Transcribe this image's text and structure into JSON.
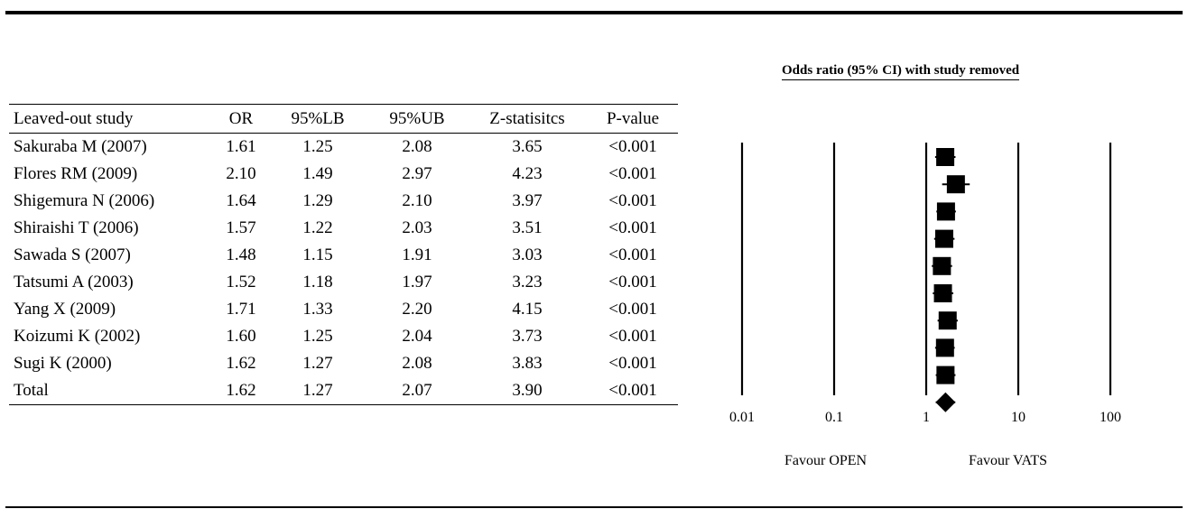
{
  "table": {
    "headers": [
      "Leaved-out study",
      "OR",
      "95%LB",
      "95%UB",
      "Z-statisitcs",
      "P-value"
    ],
    "rows": [
      {
        "study": "Sakuraba M (2007)",
        "or": "1.61",
        "lb": "1.25",
        "ub": "2.08",
        "z": "3.65",
        "p": "<0.001"
      },
      {
        "study": "Flores RM (2009)",
        "or": "2.10",
        "lb": "1.49",
        "ub": "2.97",
        "z": "4.23",
        "p": "<0.001"
      },
      {
        "study": "Shigemura N (2006)",
        "or": "1.64",
        "lb": "1.29",
        "ub": "2.10",
        "z": "3.97",
        "p": "<0.001"
      },
      {
        "study": "Shiraishi T (2006)",
        "or": "1.57",
        "lb": "1.22",
        "ub": "2.03",
        "z": "3.51",
        "p": "<0.001"
      },
      {
        "study": "Sawada S (2007)",
        "or": "1.48",
        "lb": "1.15",
        "ub": "1.91",
        "z": "3.03",
        "p": "<0.001"
      },
      {
        "study": "Tatsumi A (2003)",
        "or": "1.52",
        "lb": "1.18",
        "ub": "1.97",
        "z": "3.23",
        "p": "<0.001"
      },
      {
        "study": "Yang X (2009)",
        "or": "1.71",
        "lb": "1.33",
        "ub": "2.20",
        "z": "4.15",
        "p": "<0.001"
      },
      {
        "study": "Koizumi K (2002)",
        "or": "1.60",
        "lb": "1.25",
        "ub": "2.04",
        "z": "3.73",
        "p": "<0.001"
      },
      {
        "study": "Sugi K (2000)",
        "or": "1.62",
        "lb": "1.27",
        "ub": "2.08",
        "z": "3.83",
        "p": "<0.001"
      },
      {
        "study": "Total",
        "or": "1.62",
        "lb": "1.27",
        "ub": "2.07",
        "z": "3.90",
        "p": "<0.001"
      }
    ]
  },
  "chart_data": {
    "type": "forest",
    "title": "Odds ratio (95% CI) with study removed",
    "x_scale": "log",
    "xlim": [
      0.01,
      100
    ],
    "x_ticks": [
      0.01,
      0.1,
      1,
      10,
      100
    ],
    "x_tick_labels": [
      "0.01",
      "0.1",
      "1",
      "10",
      "100"
    ],
    "gridlines_at": [
      0.01,
      0.1,
      1,
      10,
      100
    ],
    "left_label": "Favour OPEN",
    "right_label": "Favour VATS",
    "points": [
      {
        "label": "Sakuraba M (2007)",
        "or": 1.61,
        "lb": 1.25,
        "ub": 2.08,
        "marker": "square"
      },
      {
        "label": "Flores RM (2009)",
        "or": 2.1,
        "lb": 1.49,
        "ub": 2.97,
        "marker": "square"
      },
      {
        "label": "Shigemura N (2006)",
        "or": 1.64,
        "lb": 1.29,
        "ub": 2.1,
        "marker": "square"
      },
      {
        "label": "Shiraishi T (2006)",
        "or": 1.57,
        "lb": 1.22,
        "ub": 2.03,
        "marker": "square"
      },
      {
        "label": "Sawada S (2007)",
        "or": 1.48,
        "lb": 1.15,
        "ub": 1.91,
        "marker": "square"
      },
      {
        "label": "Tatsumi A (2003)",
        "or": 1.52,
        "lb": 1.18,
        "ub": 1.97,
        "marker": "square"
      },
      {
        "label": "Yang X (2009)",
        "or": 1.71,
        "lb": 1.33,
        "ub": 2.2,
        "marker": "square"
      },
      {
        "label": "Koizumi K (2002)",
        "or": 1.6,
        "lb": 1.25,
        "ub": 2.04,
        "marker": "square"
      },
      {
        "label": "Sugi K (2000)",
        "or": 1.62,
        "lb": 1.27,
        "ub": 2.08,
        "marker": "square"
      },
      {
        "label": "Total",
        "or": 1.62,
        "lb": 1.27,
        "ub": 2.07,
        "marker": "diamond"
      }
    ]
  }
}
